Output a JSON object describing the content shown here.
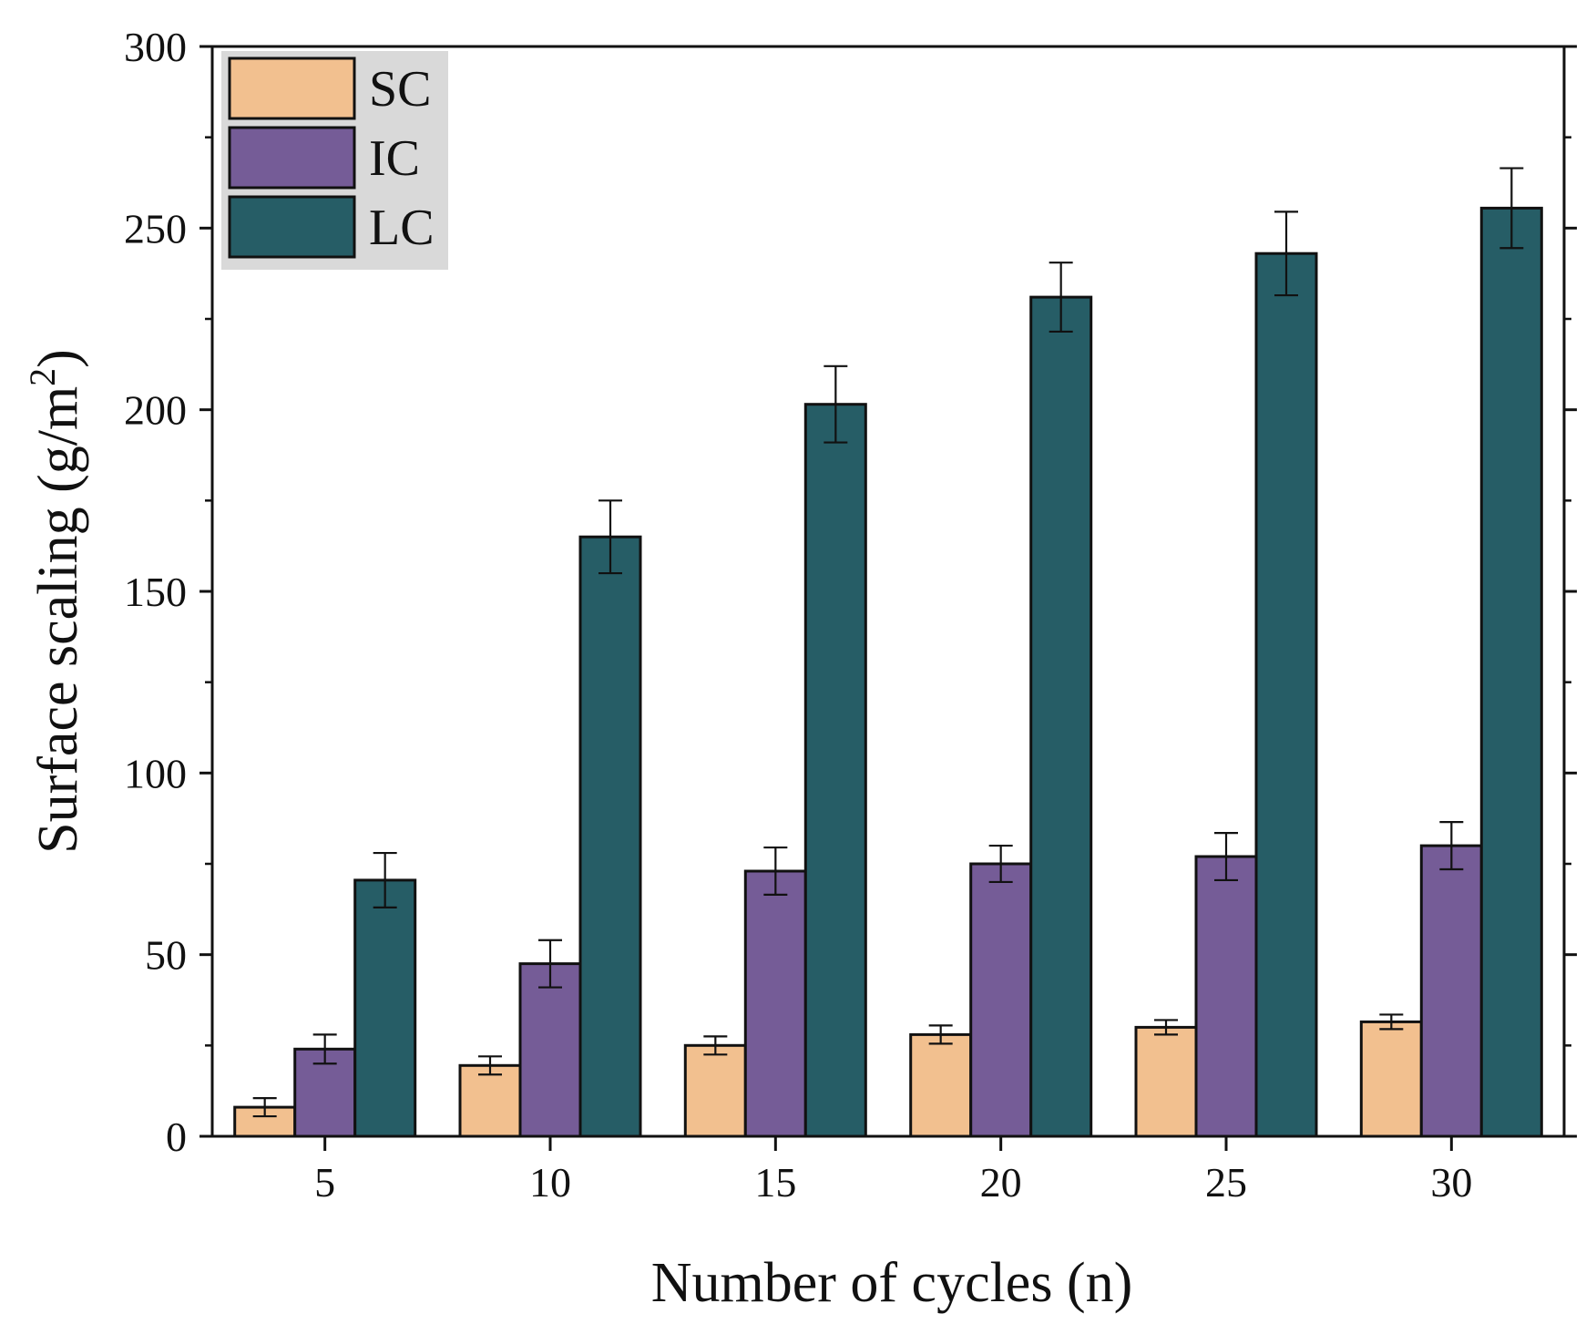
{
  "chart_data": {
    "type": "bar",
    "title": "",
    "xlabel": "Number of cycles (n)",
    "ylabel": "Surface scaling (g/m",
    "ylabel_superscript": "2",
    "ylabel_close": ")",
    "categories": [
      "5",
      "10",
      "15",
      "20",
      "25",
      "30"
    ],
    "ylim": [
      0,
      300
    ],
    "yticks": [
      "0",
      "50",
      "100",
      "150",
      "200",
      "250",
      "300"
    ],
    "grid": false,
    "legend_position": "top-left",
    "series": [
      {
        "name": "SC",
        "color": "#F2C08F",
        "values": [
          8,
          19.5,
          25,
          28,
          30,
          31.5
        ],
        "errors": [
          2.5,
          2.5,
          2.5,
          2.5,
          2,
          2
        ]
      },
      {
        "name": "IC",
        "color": "#755C97",
        "values": [
          24,
          47.5,
          73,
          75,
          77,
          80
        ],
        "errors": [
          4,
          6.5,
          6.5,
          5,
          6.5,
          6.5
        ]
      },
      {
        "name": "LC",
        "color": "#265D66",
        "values": [
          70.5,
          165,
          201.5,
          231,
          243,
          255.5
        ],
        "errors": [
          7.5,
          10,
          10.5,
          9.5,
          11.5,
          11
        ]
      }
    ]
  }
}
